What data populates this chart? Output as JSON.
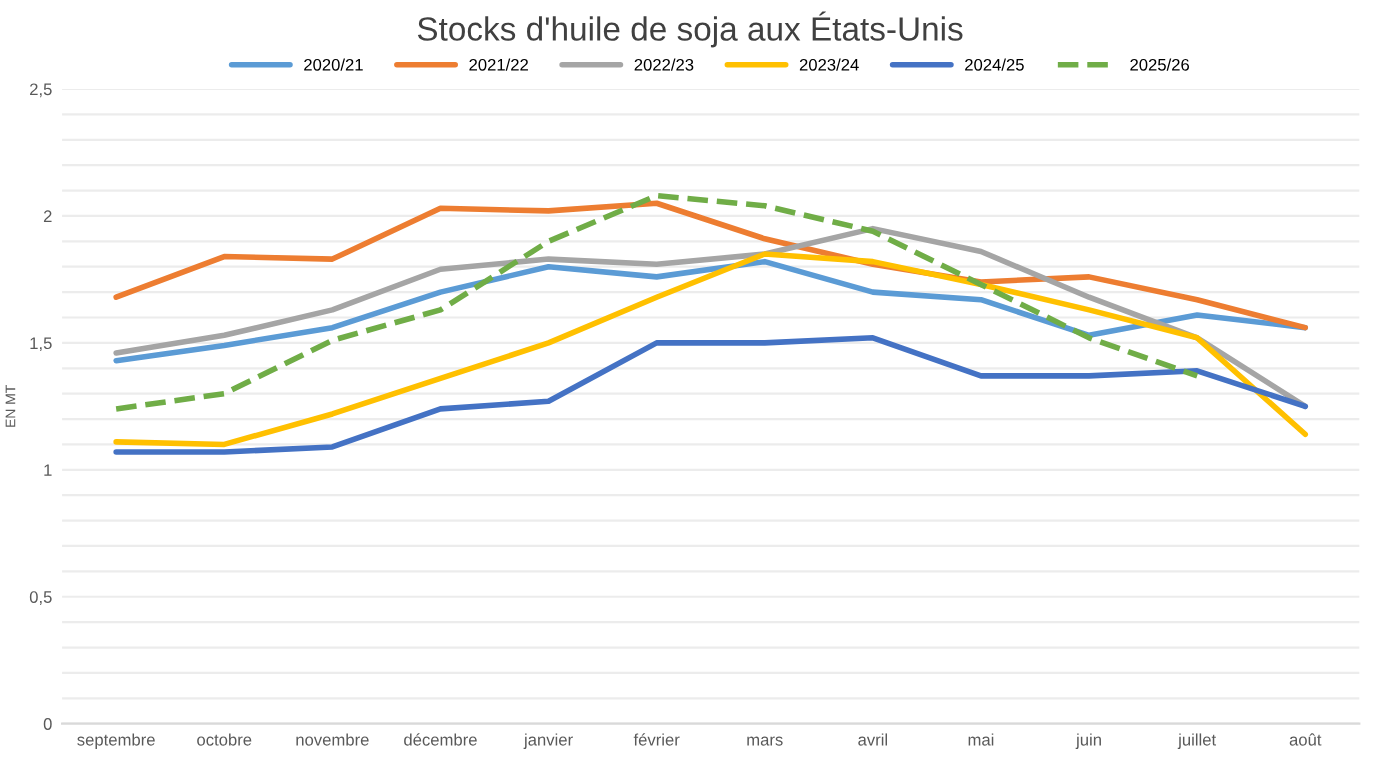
{
  "chart_data": {
    "type": "line",
    "title": "Stocks d'huile de soja aux États-Unis",
    "ylabel": "EN MT",
    "categories": [
      "septembre",
      "octobre",
      "novembre",
      "décembre",
      "janvier",
      "février",
      "mars",
      "avril",
      "mai",
      "juin",
      "juillet",
      "août"
    ],
    "series": [
      {
        "name": "2020/21",
        "color": "#5b9bd5",
        "values": [
          1.43,
          1.49,
          1.56,
          1.7,
          1.8,
          1.76,
          1.82,
          1.7,
          1.67,
          1.53,
          1.61,
          1.56
        ]
      },
      {
        "name": "2021/22",
        "color": "#ed7d31",
        "values": [
          1.68,
          1.84,
          1.83,
          2.03,
          2.02,
          2.05,
          1.91,
          1.81,
          1.74,
          1.76,
          1.67,
          1.56
        ]
      },
      {
        "name": "2022/23",
        "color": "#a5a5a5",
        "values": [
          1.46,
          1.53,
          1.63,
          1.79,
          1.83,
          1.81,
          1.85,
          1.95,
          1.86,
          1.68,
          1.52,
          1.25
        ]
      },
      {
        "name": "2023/24",
        "color": "#ffc000",
        "values": [
          1.11,
          1.1,
          1.22,
          1.36,
          1.5,
          1.68,
          1.85,
          1.82,
          1.73,
          1.63,
          1.52,
          1.14
        ]
      },
      {
        "name": "2024/25",
        "color": "#4472c4",
        "values": [
          1.07,
          1.07,
          1.09,
          1.24,
          1.27,
          1.5,
          1.5,
          1.52,
          1.37,
          1.37,
          1.39,
          1.25
        ]
      },
      {
        "name": "2025/26",
        "color": "#70ad47",
        "line_style": "dashed",
        "values": [
          1.24,
          1.3,
          1.51,
          1.63,
          1.9,
          2.08,
          2.04,
          1.94,
          1.73,
          1.52,
          1.37,
          null
        ]
      }
    ],
    "ylim": [
      0,
      2.5
    ],
    "yticks": [
      0,
      {
        "value": 0.1,
        "label": null
      },
      {
        "value": 0.2,
        "label": null
      },
      {
        "value": 0.3,
        "label": null
      },
      {
        "value": 0.4,
        "label": null
      },
      {
        "value": 0.5,
        "label": "0,5"
      },
      {
        "value": 0.6,
        "label": null
      },
      {
        "value": 0.7,
        "label": null
      },
      {
        "value": 0.8,
        "label": null
      },
      {
        "value": 0.9,
        "label": null
      },
      1,
      {
        "value": 1.1,
        "label": null
      },
      {
        "value": 1.2,
        "label": null
      },
      {
        "value": 1.3,
        "label": null
      },
      {
        "value": 1.4,
        "label": null
      },
      {
        "value": 1.5,
        "label": "1,5"
      },
      {
        "value": 1.6,
        "label": null
      },
      {
        "value": 1.7,
        "label": null
      },
      {
        "value": 1.8,
        "label": null
      },
      {
        "value": 1.9,
        "label": null
      },
      2,
      {
        "value": 2.1,
        "label": null
      },
      {
        "value": 2.2,
        "label": null
      },
      {
        "value": 2.3,
        "label": null
      },
      {
        "value": 2.4,
        "label": null
      },
      {
        "value": 2.5,
        "label": "2,5"
      }
    ],
    "grid": "y",
    "legend": "top",
    "line_style": "solid",
    "marker": "none"
  }
}
